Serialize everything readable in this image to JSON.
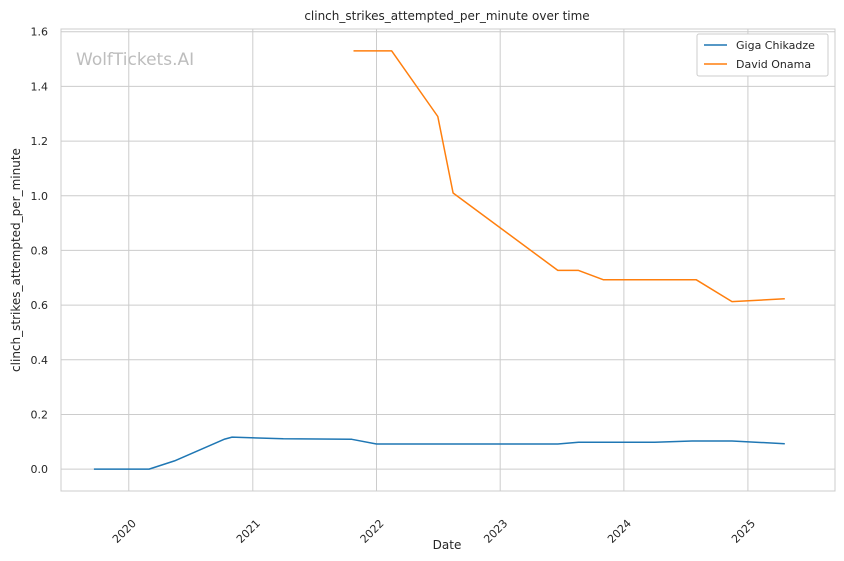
{
  "watermark": "WolfTickets.AI",
  "chart_data": {
    "type": "line",
    "title": "clinch_strikes_attempted_per_minute over time",
    "xlabel": "Date",
    "ylabel": "clinch_strikes_attempted_per_minute",
    "xlim": [
      "2019-06-15",
      "2025-09-15"
    ],
    "ylim": [
      -0.08,
      1.61
    ],
    "x_ticks": [
      "2020",
      "2021",
      "2022",
      "2023",
      "2024",
      "2025"
    ],
    "y_ticks": [
      "0.0",
      "0.2",
      "0.4",
      "0.6",
      "0.8",
      "1.0",
      "1.2",
      "1.4",
      "1.6"
    ],
    "grid": true,
    "legend_position": "top-right",
    "series": [
      {
        "name": "Giga Chikadze",
        "color": "#1f77b4",
        "points": [
          [
            "2019-09-20",
            0.0
          ],
          [
            "2020-03-01",
            0.0
          ],
          [
            "2020-05-15",
            0.03
          ],
          [
            "2020-10-10",
            0.11
          ],
          [
            "2020-11-01",
            0.117
          ],
          [
            "2021-04-01",
            0.111
          ],
          [
            "2021-10-20",
            0.109
          ],
          [
            "2022-01-01",
            0.092
          ],
          [
            "2023-06-20",
            0.092
          ],
          [
            "2023-08-20",
            0.098
          ],
          [
            "2024-04-01",
            0.098
          ],
          [
            "2024-07-20",
            0.103
          ],
          [
            "2024-11-15",
            0.103
          ],
          [
            "2025-04-20",
            0.093
          ]
        ]
      },
      {
        "name": "David Onama",
        "color": "#ff7f0e",
        "points": [
          [
            "2021-10-25",
            1.53
          ],
          [
            "2022-02-15",
            1.53
          ],
          [
            "2022-07-01",
            1.29
          ],
          [
            "2022-08-15",
            1.01
          ],
          [
            "2023-06-20",
            0.727
          ],
          [
            "2023-08-20",
            0.727
          ],
          [
            "2023-11-01",
            0.693
          ],
          [
            "2024-08-01",
            0.693
          ],
          [
            "2024-11-15",
            0.613
          ],
          [
            "2025-04-20",
            0.623
          ]
        ]
      }
    ]
  }
}
